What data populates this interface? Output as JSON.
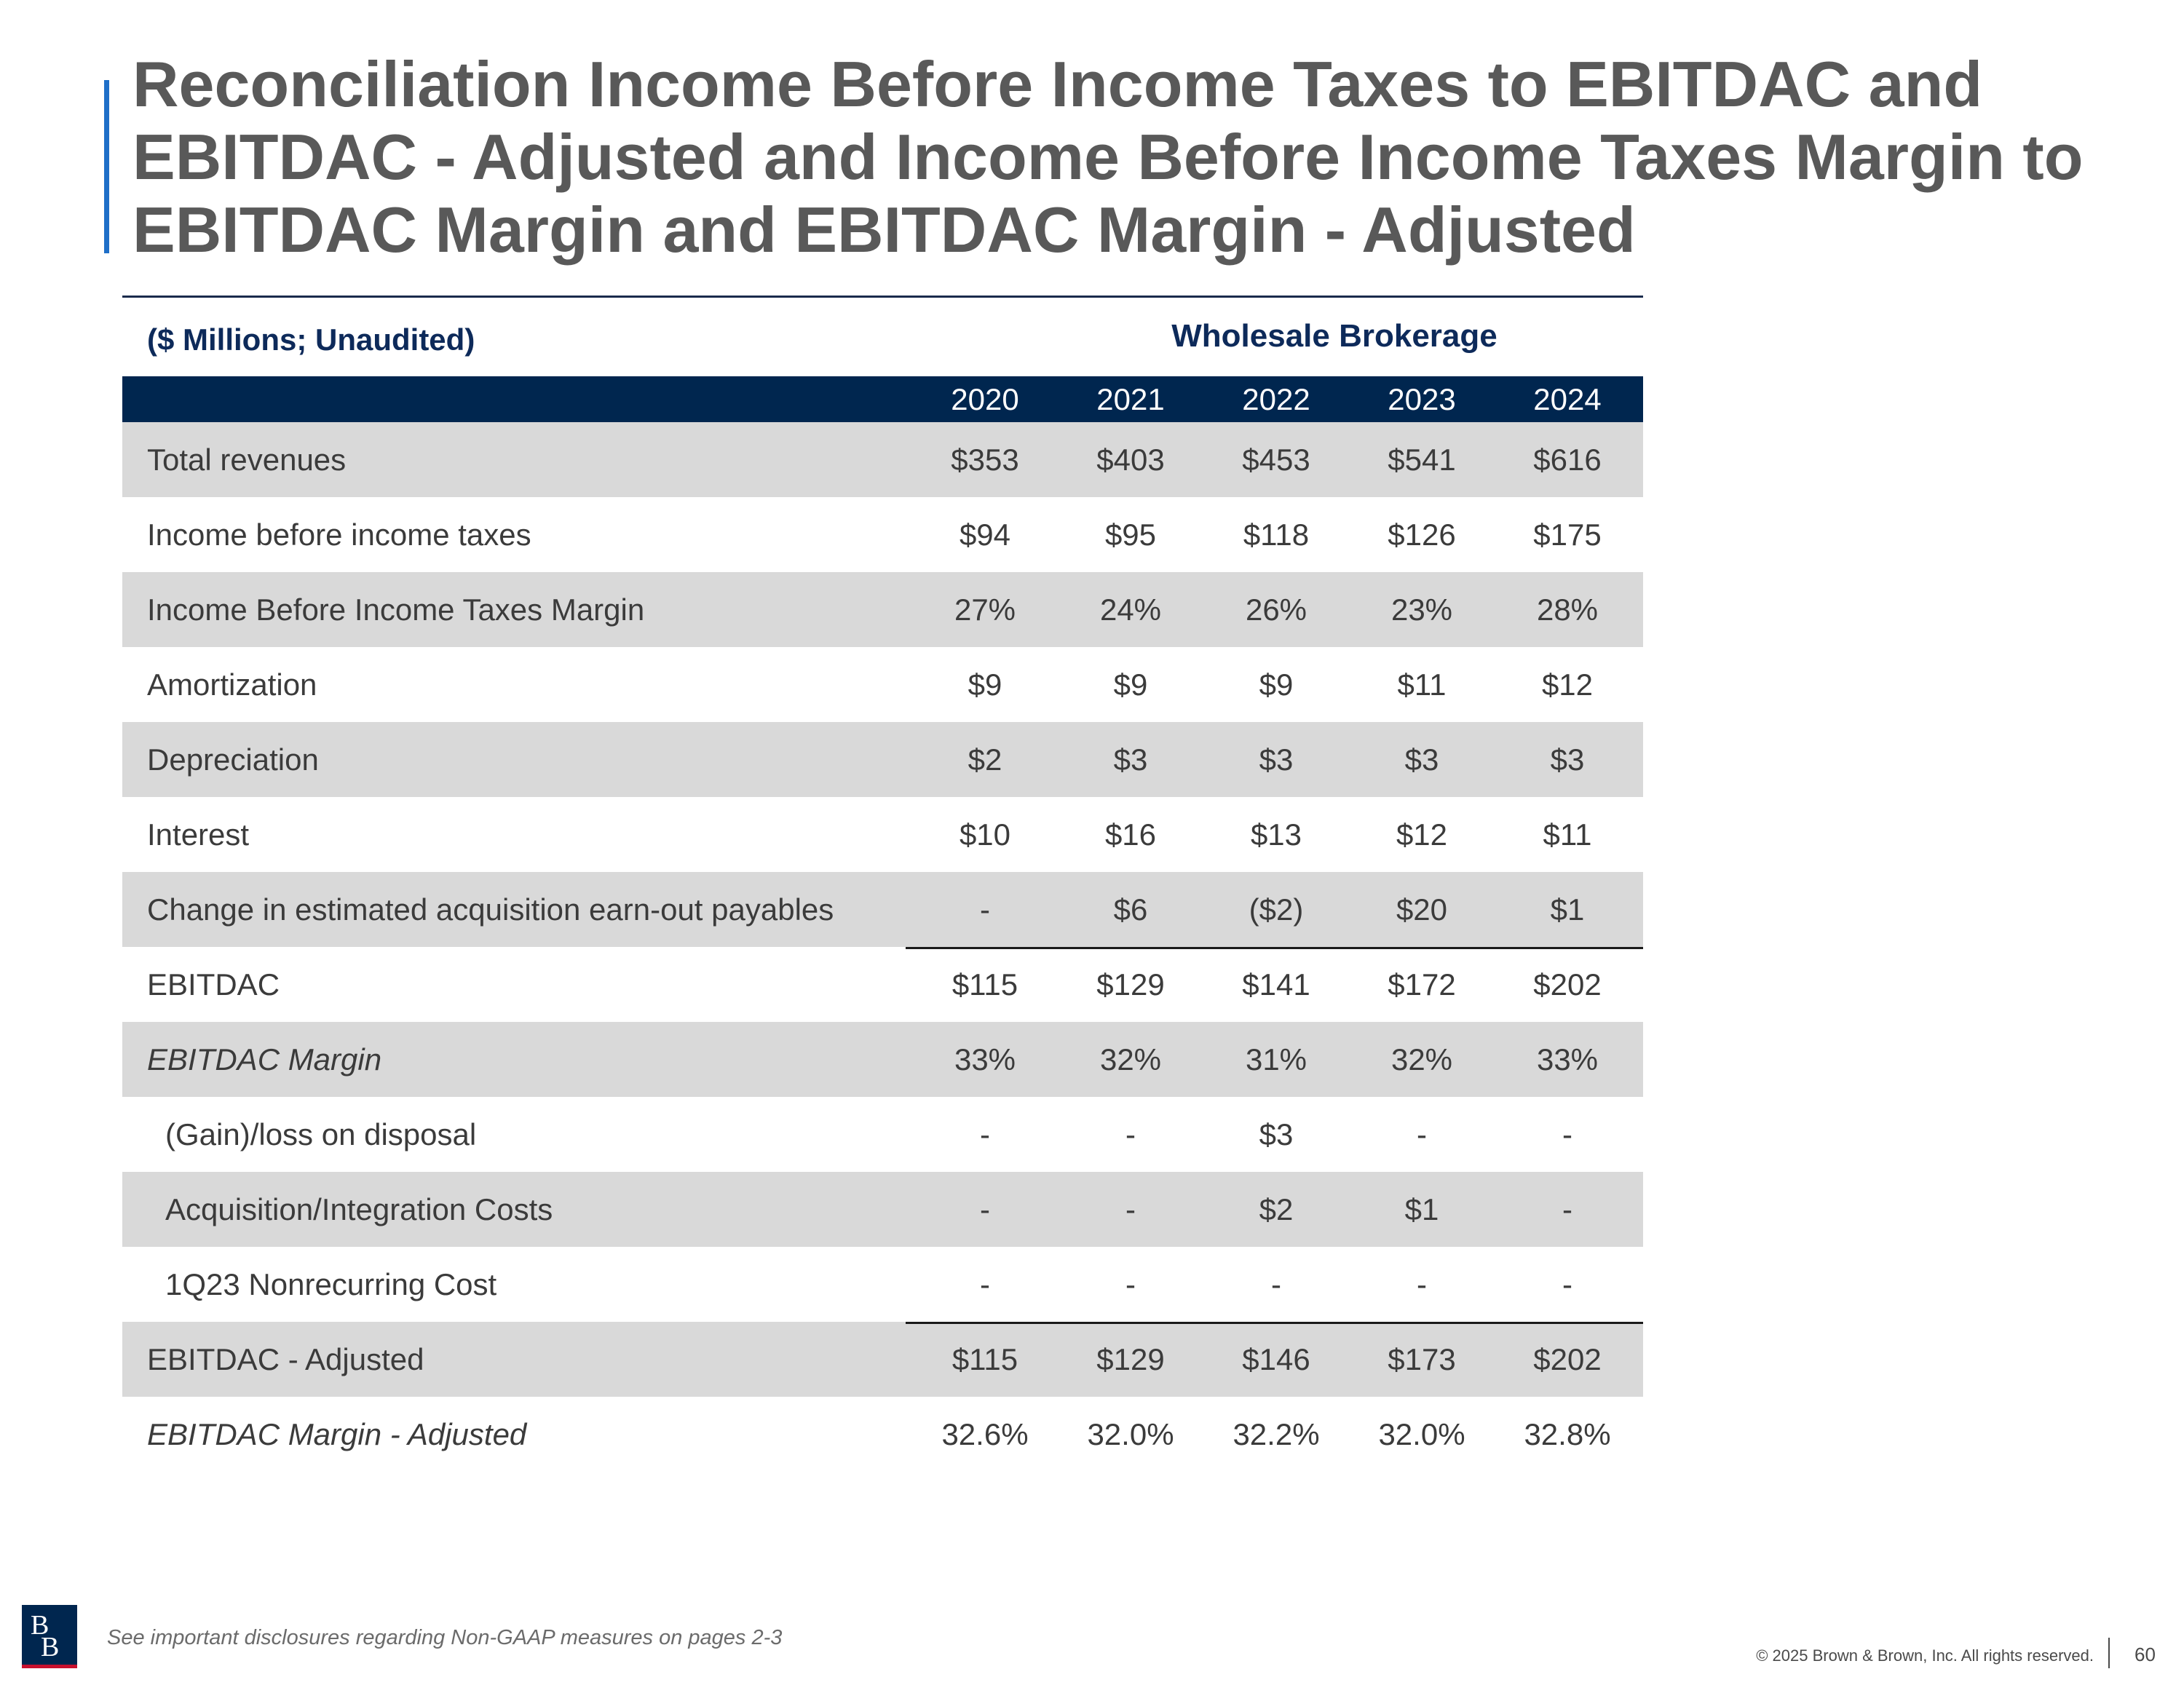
{
  "title": "Reconciliation Income Before Income Taxes to EBITDAC and EBITDAC - Adjusted and Income Before Income Taxes Margin to EBITDAC Margin and EBITDAC Margin - Adjusted",
  "table": {
    "units_label": "($ Millions; Unaudited)",
    "segment_label": "Wholesale Brokerage",
    "years": [
      "2020",
      "2021",
      "2022",
      "2023",
      "2024"
    ],
    "rows": [
      {
        "label": "Total revenues",
        "values": [
          "$353",
          "$403",
          "$453",
          "$541",
          "$616"
        ]
      },
      {
        "label": "Income before income taxes",
        "values": [
          "$94",
          "$95",
          "$118",
          "$126",
          "$175"
        ]
      },
      {
        "label": "Income Before Income Taxes Margin",
        "values": [
          "27%",
          "24%",
          "26%",
          "23%",
          "28%"
        ]
      },
      {
        "label": "Amortization",
        "values": [
          "$9",
          "$9",
          "$9",
          "$11",
          "$12"
        ]
      },
      {
        "label": "Depreciation",
        "values": [
          "$2",
          "$3",
          "$3",
          "$3",
          "$3"
        ]
      },
      {
        "label": "Interest",
        "values": [
          "$10",
          "$16",
          "$13",
          "$12",
          "$11"
        ]
      },
      {
        "label": "Change in estimated acquisition earn-out payables",
        "values": [
          "-",
          "$6",
          "($2)",
          "$20",
          "$1"
        ]
      },
      {
        "label": "EBITDAC",
        "values": [
          "$115",
          "$129",
          "$141",
          "$172",
          "$202"
        ]
      },
      {
        "label": "EBITDAC Margin",
        "values": [
          "33%",
          "32%",
          "31%",
          "32%",
          "33%"
        ]
      },
      {
        "label": "(Gain)/loss on disposal",
        "values": [
          "-",
          "-",
          "$3",
          "-",
          "-"
        ]
      },
      {
        "label": "Acquisition/Integration Costs",
        "values": [
          "-",
          "-",
          "$2",
          "$1",
          "-"
        ]
      },
      {
        "label": "1Q23 Nonrecurring Cost",
        "values": [
          "-",
          "-",
          "-",
          "-",
          "-"
        ]
      },
      {
        "label": "EBITDAC - Adjusted",
        "values": [
          "$115",
          "$129",
          "$146",
          "$173",
          "$202"
        ]
      },
      {
        "label": "EBITDAC Margin - Adjusted",
        "values": [
          "32.6%",
          "32.0%",
          "32.2%",
          "32.0%",
          "32.8%"
        ]
      }
    ]
  },
  "footer": {
    "disclosure": "See important disclosures regarding Non-GAAP measures on pages 2-3",
    "copyright": "© 2025 Brown & Brown, Inc. All rights reserved.",
    "page_number": "60",
    "logo_text": "BB"
  },
  "colors": {
    "accent": "#1f6fc8",
    "header_navy": "#00264f",
    "row_shade": "#d9d9d9",
    "title_gray": "#595959"
  }
}
